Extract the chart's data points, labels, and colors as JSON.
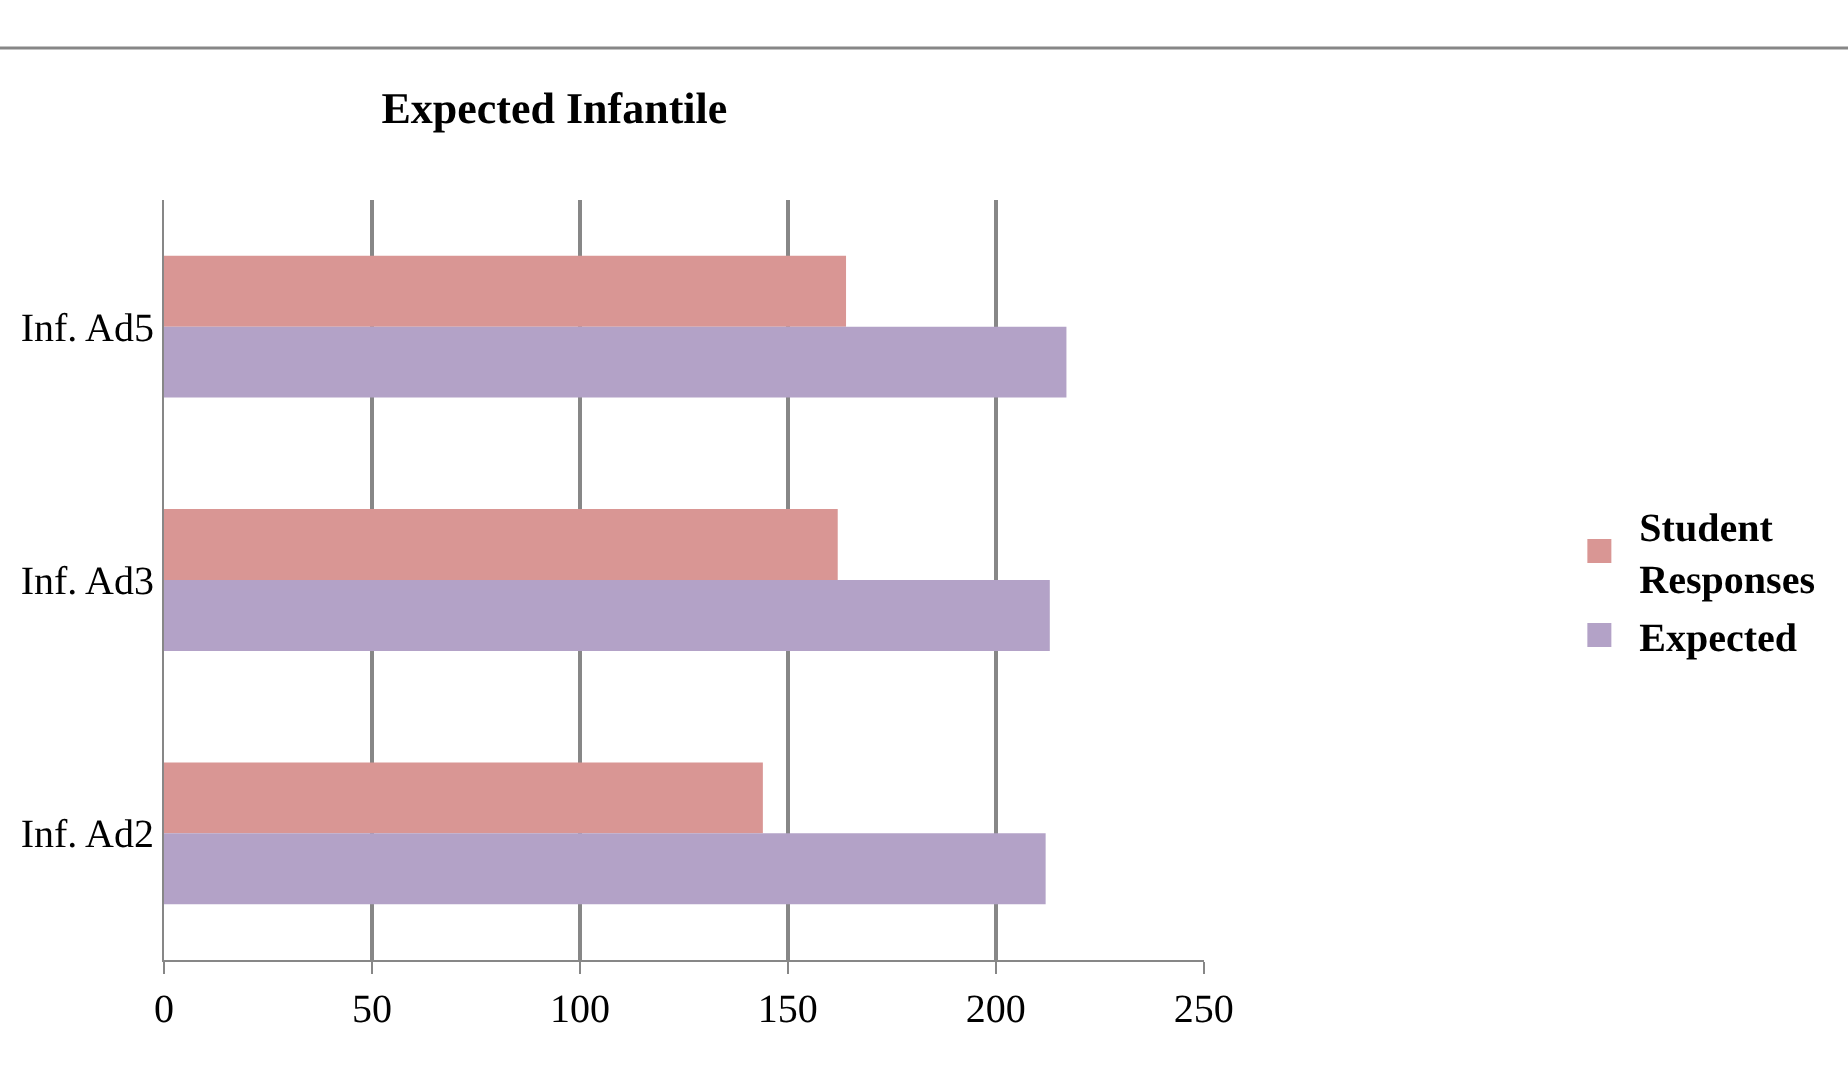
{
  "chart_data": {
    "type": "bar",
    "orientation": "horizontal",
    "title": "Expected Infantile",
    "categories": [
      "Inf. Ad5",
      "Inf. Ad3",
      "Inf. Ad2"
    ],
    "series": [
      {
        "name": "Student Responses",
        "color": "#d99694",
        "values": [
          164,
          162,
          144
        ]
      },
      {
        "name": "Expected",
        "color": "#b3a2c7",
        "values": [
          217,
          213,
          212
        ]
      }
    ],
    "xlim": [
      0,
      250
    ],
    "xticks": [
      0,
      50,
      100,
      150,
      200,
      250
    ],
    "grid": "x",
    "legend": "right"
  }
}
